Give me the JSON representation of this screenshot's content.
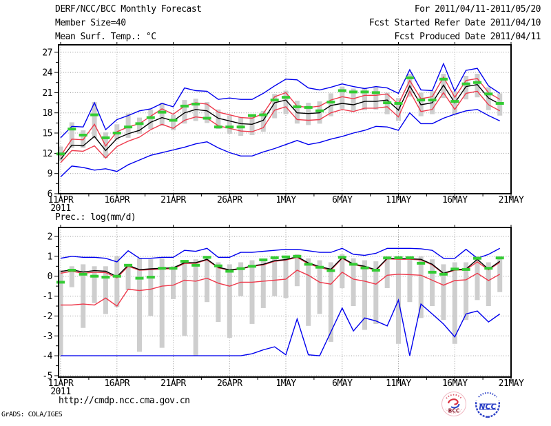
{
  "header": {
    "left": [
      "DERF/NCC/BCC Monthly Forecast",
      "Member Size=40",
      "Mean Surf. Temp.: °C"
    ],
    "right": [
      "For 2011/04/11-2011/05/20",
      "Fcst Started Refer Date 2011/04/10",
      "Fcst Produced Date 2011/04/11"
    ]
  },
  "footer": {
    "url": "http://cmdp.ncc.cma.gov.cn",
    "credit": "GrADS: COLA/IGES"
  },
  "logos": {
    "bcc": "BCC",
    "ncc": "NCC"
  },
  "colors": {
    "max_min": "#0000ee",
    "spread_line": "#ee3a4c",
    "mean": "#000000",
    "obs": "#33cc33",
    "bars": "#cecece",
    "grid": "#9a9a9a"
  },
  "chart_data": [
    {
      "type": "line",
      "title": "Mean Surf. Temp.: °C",
      "x_ticklabels": [
        "11APR",
        "16APR",
        "21APR",
        "26APR",
        "1MAY",
        "6MAY",
        "11MAY",
        "16MAY",
        "21MAY"
      ],
      "xtick_days": [
        0,
        5,
        10,
        15,
        20,
        25,
        30,
        35,
        40
      ],
      "year_label": "2011",
      "n_days": 40,
      "ylim": [
        6,
        28.1
      ],
      "yticks": [
        6,
        9,
        12,
        15,
        18,
        21,
        24,
        27
      ],
      "grid": true,
      "series": [
        {
          "name": "ensemble-max",
          "color": "#0000ee",
          "values": [
            14.3,
            16.0,
            15.9,
            19.5,
            15.5,
            17.0,
            17.6,
            18.3,
            18.6,
            19.4,
            18.9,
            21.7,
            21.3,
            21.2,
            20.0,
            20.2,
            20.0,
            20.0,
            20.9,
            22.0,
            23.0,
            22.9,
            21.7,
            21.4,
            21.8,
            22.3,
            21.9,
            21.6,
            21.9,
            21.7,
            20.9,
            24.4,
            21.4,
            21.3,
            25.3,
            21.2,
            24.3,
            24.6,
            22.0,
            20.9
          ]
        },
        {
          "name": "ensemble-min",
          "color": "#0000ee",
          "values": [
            8.5,
            10.1,
            9.9,
            9.5,
            9.7,
            9.3,
            10.3,
            11.0,
            11.7,
            12.1,
            12.5,
            12.9,
            13.4,
            13.7,
            12.8,
            12.1,
            11.6,
            11.6,
            12.2,
            12.7,
            13.3,
            13.9,
            13.3,
            13.6,
            14.1,
            14.5,
            15.0,
            15.4,
            16.0,
            15.9,
            15.4,
            18.0,
            16.4,
            16.4,
            17.2,
            17.8,
            18.3,
            18.5,
            17.6,
            16.8
          ]
        },
        {
          "name": "upper-spread",
          "color": "#ee3a4c",
          "values": [
            11.6,
            14.1,
            14.0,
            16.3,
            13.1,
            15.2,
            15.9,
            16.4,
            17.5,
            18.6,
            17.8,
            19.0,
            19.5,
            19.3,
            18.1,
            17.7,
            17.3,
            17.2,
            17.9,
            20.4,
            21.0,
            19.0,
            18.8,
            19.0,
            19.9,
            20.4,
            20.1,
            20.6,
            20.6,
            20.8,
            19.3,
            22.8,
            20.1,
            20.4,
            23.3,
            20.3,
            22.8,
            23.1,
            21.0,
            20.0
          ]
        },
        {
          "name": "lower-spread",
          "color": "#ee3a4c",
          "values": [
            10.6,
            12.4,
            12.3,
            13.1,
            11.3,
            13.0,
            13.8,
            14.4,
            15.5,
            16.3,
            15.7,
            16.9,
            17.4,
            17.2,
            16.1,
            15.7,
            15.3,
            15.2,
            15.8,
            18.4,
            18.9,
            17.0,
            16.9,
            17.0,
            18.0,
            18.5,
            18.2,
            18.7,
            18.7,
            18.9,
            17.4,
            21.2,
            18.2,
            18.5,
            21.0,
            18.5,
            20.9,
            21.2,
            19.2,
            18.3
          ]
        },
        {
          "name": "ensemble-mean",
          "color": "#000000",
          "values": [
            11.1,
            13.2,
            13.1,
            14.5,
            12.4,
            14.2,
            14.9,
            15.4,
            16.6,
            17.3,
            16.8,
            18.0,
            18.5,
            18.3,
            17.2,
            16.8,
            16.4,
            16.3,
            16.9,
            19.5,
            19.9,
            18.0,
            17.9,
            18.0,
            19.1,
            19.4,
            19.2,
            19.7,
            19.7,
            19.9,
            18.4,
            22.0,
            19.2,
            19.5,
            22.1,
            19.5,
            21.9,
            22.2,
            20.2,
            19.3
          ]
        }
      ],
      "obs": {
        "name": "analysis-dashes",
        "color": "#33cc33",
        "values": [
          11.9,
          15.6,
          14.7,
          17.7,
          14.3,
          15.0,
          15.9,
          16.4,
          17.3,
          18.1,
          16.9,
          19.0,
          19.3,
          17.2,
          15.9,
          15.9,
          15.9,
          17.6,
          17.7,
          19.9,
          20.3,
          18.9,
          18.8,
          18.3,
          19.6,
          21.3,
          21.1,
          21.1,
          21.0,
          19.5,
          19.4,
          23.2,
          19.9,
          19.9,
          23.0,
          19.7,
          22.3,
          22.5,
          20.8,
          19.4
        ]
      },
      "spread_bars": {
        "color": "#cecece",
        "ranges": [
          [
            10.9,
            13.0
          ],
          [
            12.8,
            16.6
          ],
          [
            12.8,
            15.4
          ],
          [
            14.2,
            19.6
          ],
          [
            11.3,
            15.1
          ],
          [
            14.0,
            16.3
          ],
          [
            14.3,
            17.9
          ],
          [
            14.9,
            17.3
          ],
          [
            15.6,
            18.5
          ],
          [
            16.1,
            19.5
          ],
          [
            15.4,
            17.7
          ],
          [
            16.4,
            19.9
          ],
          [
            16.8,
            20.1
          ],
          [
            16.5,
            19.6
          ],
          [
            15.6,
            18.5
          ],
          [
            14.9,
            17.6
          ],
          [
            14.6,
            17.4
          ],
          [
            14.7,
            17.7
          ],
          [
            15.2,
            18.3
          ],
          [
            17.2,
            20.8
          ],
          [
            17.8,
            21.3
          ],
          [
            16.4,
            19.8
          ],
          [
            16.2,
            19.5
          ],
          [
            16.4,
            19.7
          ],
          [
            17.5,
            20.9
          ],
          [
            18.6,
            21.9
          ],
          [
            18.3,
            21.6
          ],
          [
            18.4,
            21.7
          ],
          [
            18.5,
            21.8
          ],
          [
            17.8,
            21.0
          ],
          [
            16.8,
            20.2
          ],
          [
            20.4,
            23.8
          ],
          [
            17.5,
            21.0
          ],
          [
            17.8,
            21.2
          ],
          [
            20.2,
            23.8
          ],
          [
            17.7,
            21.2
          ],
          [
            20.0,
            23.5
          ],
          [
            20.3,
            23.8
          ],
          [
            18.4,
            21.8
          ],
          [
            17.6,
            20.9
          ]
        ]
      }
    },
    {
      "type": "line",
      "title": "Prec.: log(mm/d)",
      "x_ticklabels": [
        "11APR",
        "16APR",
        "21APR",
        "26APR",
        "1MAY",
        "6MAY",
        "11MAY",
        "16MAY",
        "21MAY"
      ],
      "xtick_days": [
        0,
        5,
        10,
        15,
        20,
        25,
        30,
        35,
        40
      ],
      "year_label": "2011",
      "n_days": 40,
      "ylim": [
        -5.07,
        2.45
      ],
      "yticks": [
        -5,
        -4,
        -3,
        -2,
        -1,
        0,
        1,
        2
      ],
      "grid": true,
      "series": [
        {
          "name": "ensemble-max",
          "color": "#0000ee",
          "values": [
            0.9,
            1.0,
            0.95,
            0.95,
            0.9,
            0.72,
            1.28,
            0.9,
            0.9,
            0.95,
            0.95,
            1.3,
            1.25,
            1.4,
            0.95,
            0.95,
            1.2,
            1.2,
            1.25,
            1.3,
            1.35,
            1.35,
            1.28,
            1.2,
            1.2,
            1.4,
            1.1,
            1.05,
            1.15,
            1.4,
            1.4,
            1.4,
            1.38,
            1.3,
            0.9,
            0.9,
            1.35,
            0.9,
            1.1,
            1.4
          ]
        },
        {
          "name": "ensemble-min",
          "color": "#0000ee",
          "values": [
            -4,
            -4,
            -4,
            -4,
            -4,
            -4,
            -4,
            -4,
            -4,
            -4,
            -4,
            -4,
            -4,
            -4,
            -4,
            -4,
            -4,
            -3.9,
            -3.7,
            -3.55,
            -3.95,
            -2.15,
            -3.95,
            -4,
            -2.8,
            -1.6,
            -2.75,
            -2.1,
            -2.25,
            -2.5,
            -1.2,
            -4,
            -1.4,
            -1.9,
            -2.4,
            -3.05,
            -1.9,
            -1.75,
            -2.3,
            -1.9
          ]
        },
        {
          "name": "upper-spread",
          "color": "#ee3a4c",
          "values": [
            0.15,
            0.25,
            0.15,
            0.2,
            0.18,
            -0.08,
            0.5,
            0.3,
            0.33,
            0.36,
            0.38,
            0.64,
            0.65,
            0.82,
            0.42,
            0.3,
            0.36,
            0.5,
            0.57,
            0.75,
            0.81,
            0.95,
            0.62,
            0.44,
            0.3,
            0.9,
            0.58,
            0.47,
            0.29,
            0.87,
            0.85,
            0.85,
            0.82,
            0.57,
            0.12,
            0.3,
            0.33,
            0.72,
            0.32,
            0.7
          ]
        },
        {
          "name": "lower-spread",
          "color": "#ee3a4c",
          "values": [
            -1.45,
            -1.45,
            -1.4,
            -1.45,
            -1.1,
            -1.5,
            -0.65,
            -0.72,
            -0.65,
            -0.5,
            -0.45,
            -0.2,
            -0.25,
            -0.1,
            -0.35,
            -0.5,
            -0.3,
            -0.3,
            -0.25,
            -0.2,
            -0.15,
            0.3,
            0.05,
            -0.3,
            -0.4,
            0.2,
            -0.15,
            -0.25,
            -0.4,
            0.05,
            0.1,
            0.08,
            0.05,
            -0.2,
            -0.45,
            -0.22,
            -0.18,
            0.15,
            -0.22,
            0.1
          ]
        },
        {
          "name": "ensemble-mean",
          "color": "#000000",
          "values": [
            0.24,
            0.32,
            0.21,
            0.28,
            0.25,
            -0.02,
            0.55,
            0.33,
            0.37,
            0.4,
            0.42,
            0.68,
            0.68,
            0.85,
            0.45,
            0.32,
            0.38,
            0.52,
            0.6,
            0.78,
            0.84,
            0.98,
            0.67,
            0.48,
            0.35,
            0.93,
            0.61,
            0.5,
            0.32,
            0.9,
            0.88,
            0.88,
            0.85,
            0.6,
            0.15,
            0.33,
            0.36,
            0.85,
            0.35,
            0.75
          ]
        }
      ],
      "obs": {
        "name": "analysis-dashes",
        "color": "#33cc33",
        "values": [
          -0.3,
          0.3,
          0.1,
          0.0,
          -0.05,
          0.0,
          0.55,
          -0.1,
          -0.05,
          0.4,
          0.4,
          0.75,
          0.55,
          0.95,
          0.52,
          0.25,
          0.38,
          0.5,
          0.82,
          0.93,
          0.97,
          1.0,
          0.6,
          0.45,
          0.28,
          0.95,
          0.6,
          0.42,
          0.3,
          0.92,
          0.93,
          0.93,
          0.65,
          0.2,
          0.1,
          0.36,
          0.34,
          0.9,
          0.4,
          0.92
        ]
      },
      "spread_bars": {
        "color": "#cecece",
        "ranges": [
          [
            -4,
            0.3
          ],
          [
            -0.55,
            0.5
          ],
          [
            -2.6,
            0.6
          ],
          [
            -1.35,
            0.5
          ],
          [
            -1.9,
            0.5
          ],
          [
            -1.55,
            1.0
          ],
          [
            -0.7,
            0.5
          ],
          [
            -3.8,
            0.9
          ],
          [
            -2.0,
            0.85
          ],
          [
            -3.6,
            0.9
          ],
          [
            -1.15,
            0.5
          ],
          [
            -3.0,
            0.8
          ],
          [
            -4.0,
            0.85
          ],
          [
            -1.3,
            0.9
          ],
          [
            -2.3,
            0.7
          ],
          [
            -3.1,
            0.6
          ],
          [
            -1.0,
            0.7
          ],
          [
            -2.4,
            0.8
          ],
          [
            -1.6,
            0.85
          ],
          [
            -1.0,
            0.9
          ],
          [
            -1.1,
            1.0
          ],
          [
            -0.5,
            1.1
          ],
          [
            -2.5,
            0.9
          ],
          [
            -1.9,
            0.8
          ],
          [
            -3.3,
            0.7
          ],
          [
            -0.6,
            1.1
          ],
          [
            -1.5,
            0.9
          ],
          [
            -2.7,
            0.8
          ],
          [
            -2.4,
            0.75
          ],
          [
            -0.6,
            1.0
          ],
          [
            -3.4,
            1.0
          ],
          [
            -1.3,
            1.0
          ],
          [
            -2.1,
            1.0
          ],
          [
            -1.5,
            0.85
          ],
          [
            -2.2,
            0.6
          ],
          [
            -3.4,
            0.7
          ],
          [
            -2.2,
            0.7
          ],
          [
            -1.2,
            1.0
          ],
          [
            -1.5,
            0.7
          ],
          [
            -0.8,
            1.0
          ]
        ]
      }
    }
  ]
}
